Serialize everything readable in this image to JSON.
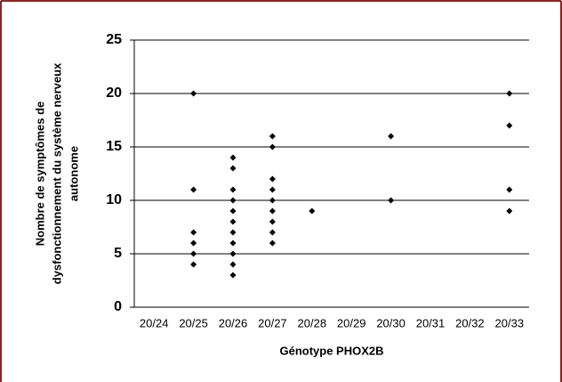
{
  "chart_data": {
    "type": "scatter",
    "ylabel": [
      "Nombre de symptômes de",
      "dysfonctionnement du système nerveux",
      "autonome"
    ],
    "xlabel": "Génotype PHOX2B",
    "categories": [
      "20/24",
      "20/25",
      "20/26",
      "20/27",
      "20/28",
      "20/29",
      "20/30",
      "20/31",
      "20/32",
      "20/33"
    ],
    "series": [
      {
        "color": "#000000",
        "x": [
          "20/25",
          "20/25",
          "20/25",
          "20/25",
          "20/25",
          "20/25",
          "20/26",
          "20/26",
          "20/26",
          "20/26",
          "20/26",
          "20/26",
          "20/26",
          "20/26",
          "20/26",
          "20/26",
          "20/26",
          "20/27",
          "20/27",
          "20/27",
          "20/27",
          "20/27",
          "20/27",
          "20/27",
          "20/27",
          "20/27",
          "20/28",
          "20/30",
          "20/30",
          "20/33",
          "20/33",
          "20/33",
          "20/33"
        ],
        "values": [
          20,
          11,
          7,
          6,
          5,
          4,
          14,
          13,
          11,
          10,
          9,
          8,
          7,
          6,
          5,
          4,
          3,
          16,
          15,
          12,
          11,
          10,
          9,
          8,
          7,
          6,
          9,
          16,
          10,
          20,
          17,
          11,
          9
        ]
      }
    ],
    "ylim": [
      0,
      25
    ],
    "yticks": [
      0,
      5,
      10,
      15,
      20,
      25
    ],
    "grid": true
  }
}
